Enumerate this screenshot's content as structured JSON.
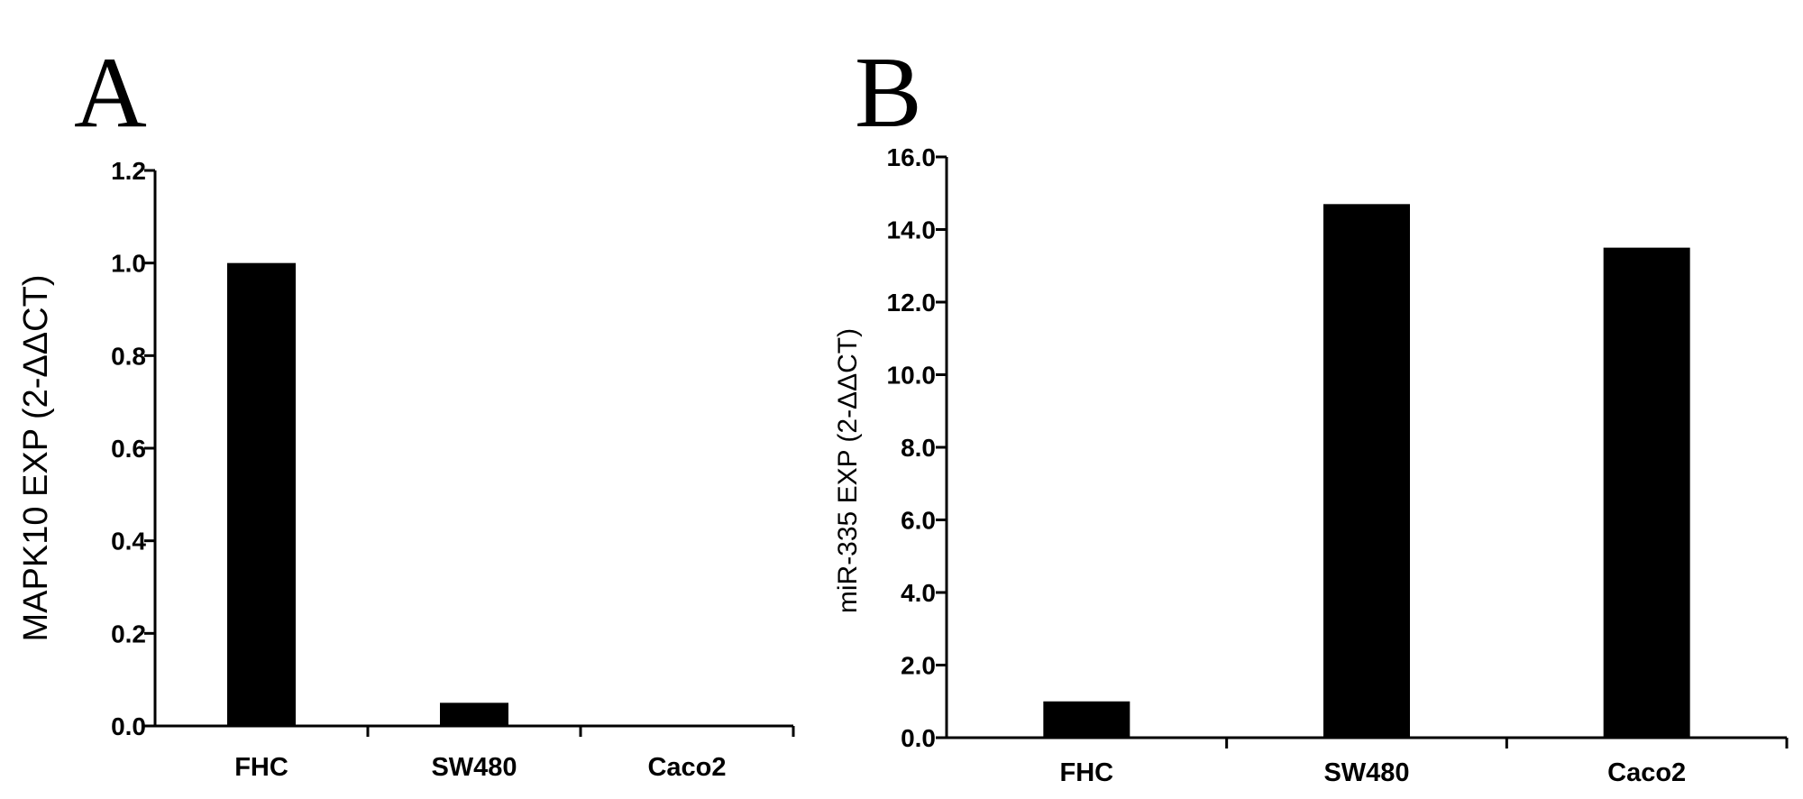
{
  "chart_data": [
    {
      "panel": "A",
      "type": "bar",
      "categories": [
        "FHC",
        "SW480",
        "Caco2"
      ],
      "values": [
        1.0,
        0.05,
        0.0
      ],
      "ylabel": "MAPK10 EXP (2-ΔΔCT)",
      "xlabel": "",
      "ylim": [
        0,
        1.2
      ],
      "yticks": [
        "0.0",
        "0.2",
        "0.4",
        "0.6",
        "0.8",
        "1.0",
        "1.2"
      ],
      "grid": false,
      "bar_color": "#000000"
    },
    {
      "panel": "B",
      "type": "bar",
      "categories": [
        "FHC",
        "SW480",
        "Caco2"
      ],
      "values": [
        1.0,
        14.7,
        13.5
      ],
      "ylabel": "miR-335 EXP (2-ΔΔCT)",
      "xlabel": "",
      "ylim": [
        0,
        16
      ],
      "yticks": [
        "0.0",
        "2.0",
        "4.0",
        "6.0",
        "8.0",
        "10.0",
        "12.0",
        "14.0",
        "16.0"
      ],
      "grid": false,
      "bar_color": "#000000"
    }
  ]
}
